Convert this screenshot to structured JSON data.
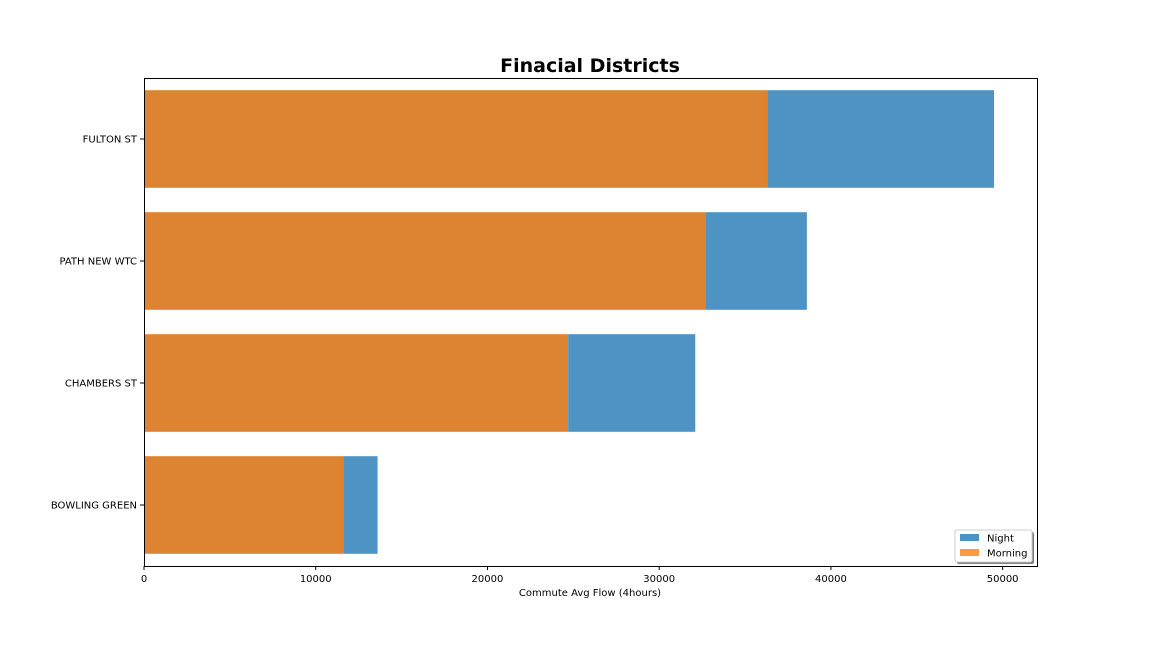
{
  "chart_data": {
    "type": "bar",
    "orientation": "horizontal",
    "stacked": true,
    "title": "Finacial Districts",
    "xlabel": "Commute Avg Flow (4hours)",
    "ylabel": "",
    "xlim": [
      0,
      52000
    ],
    "xticks": [
      0,
      10000,
      20000,
      30000,
      40000,
      50000
    ],
    "categories": [
      "FULTON ST",
      "PATH NEW WTC",
      "CHAMBERS ST",
      "BOWLING GREEN"
    ],
    "series": [
      {
        "name": "Morning",
        "color": "#dd8433",
        "values": [
          36300,
          32700,
          24700,
          11600
        ]
      },
      {
        "name": "Night",
        "color": "#4d93c3",
        "values": [
          13200,
          5900,
          7400,
          2000
        ]
      }
    ],
    "legend": {
      "position": "lower-right",
      "entries": [
        {
          "label": "Night",
          "color": "#4d93c3"
        },
        {
          "label": "Morning",
          "color": "#fd9a44"
        }
      ]
    },
    "grid": false
  }
}
